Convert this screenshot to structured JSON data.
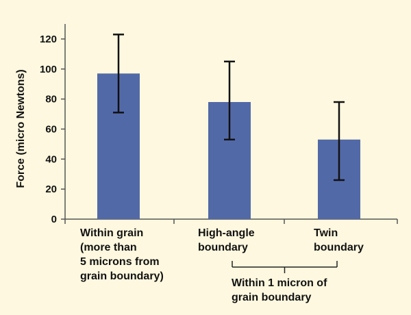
{
  "colors": {
    "background": "#fdf8df",
    "bar": "#5269a8",
    "axis": "#555555",
    "error_bar": "#111111"
  },
  "chart_data": {
    "type": "bar",
    "title": "",
    "xlabel": "",
    "ylabel": "Force (micro Newtons)",
    "ylim": [
      0,
      130
    ],
    "yticks": [
      0,
      20,
      40,
      60,
      80,
      100,
      120
    ],
    "grid": false,
    "categories": [
      [
        "Within grain",
        "(more than",
        "5 microns from",
        "grain boundary)"
      ],
      [
        "High-angle",
        "boundary"
      ],
      [
        "Twin",
        "boundary"
      ]
    ],
    "values": [
      97,
      78,
      53
    ],
    "error_low": [
      71,
      53,
      26
    ],
    "error_high": [
      123,
      105,
      78
    ],
    "group_annotation": {
      "text": [
        "Within 1 micron of",
        "grain boundary"
      ],
      "spans_categories": [
        1,
        2
      ]
    }
  }
}
